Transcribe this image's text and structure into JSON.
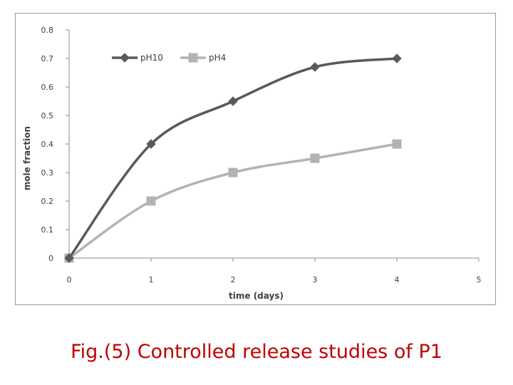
{
  "caption": "Fig.(5) Controlled release studies of P1",
  "chart_data": {
    "type": "line",
    "title": "",
    "xlabel": "time (days)",
    "ylabel": "mole fraction",
    "xlim": [
      0,
      5
    ],
    "ylim": [
      0,
      0.8
    ],
    "x_ticks": [
      "0",
      "1",
      "2",
      "3",
      "4",
      "5"
    ],
    "y_ticks": [
      "0",
      "0.1",
      "0.2",
      "0.3",
      "0.4",
      "0.5",
      "0.6",
      "0.7",
      "0.8"
    ],
    "grid": false,
    "legend_position": "top-left",
    "x": [
      0,
      1,
      2,
      3,
      4
    ],
    "series": [
      {
        "name": "pH10",
        "values": [
          0,
          0.4,
          0.55,
          0.67,
          0.7
        ],
        "color": "#595959",
        "marker": "diamond"
      },
      {
        "name": "pH4",
        "values": [
          0,
          0.2,
          0.3,
          0.35,
          0.4
        ],
        "color": "#b3b3b3",
        "marker": "square"
      }
    ]
  }
}
